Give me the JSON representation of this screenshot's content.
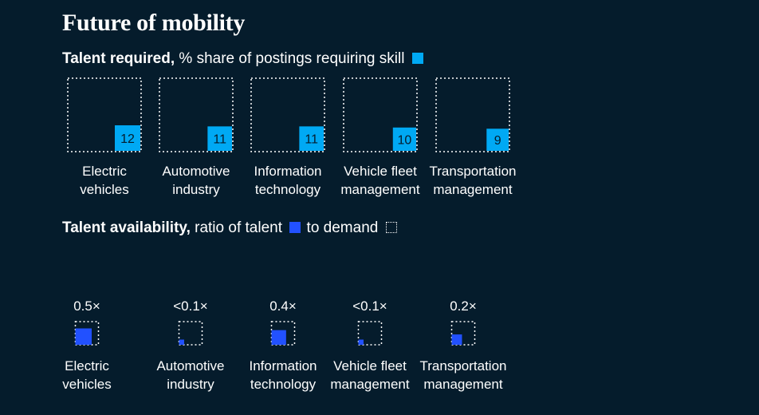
{
  "title": "Future of mobility",
  "talent_required": {
    "label_bold": "Talent required,",
    "label_rest": " % share of postings requiring skill",
    "legend_color": "#00a9f4"
  },
  "talent_availability": {
    "label_bold": "Talent availability,",
    "label_rest": " ratio of talent",
    "label_demand": " to demand",
    "legend_color": "#2251ff"
  },
  "chart_data": [
    {
      "type": "bar",
      "title": "Talent required, % share of postings requiring skill",
      "categories": [
        [
          "Electric",
          "vehicles"
        ],
        [
          "Automotive",
          "industry"
        ],
        [
          "Information",
          "technology"
        ],
        [
          "Vehicle fleet",
          "management"
        ],
        [
          "Transportation",
          "management"
        ]
      ],
      "values": [
        12,
        11,
        11,
        10,
        9
      ],
      "value_labels": [
        "12",
        "11",
        "11",
        "10",
        "9"
      ]
    },
    {
      "type": "bar",
      "title": "Talent availability, ratio of talent to demand",
      "categories": [
        [
          "Electric",
          "vehicles"
        ],
        [
          "Automotive",
          "industry"
        ],
        [
          "Information",
          "technology"
        ],
        [
          "Vehicle fleet",
          "management"
        ],
        [
          "Transportation",
          "management"
        ]
      ],
      "values": [
        0.5,
        0.05,
        0.4,
        0.05,
        0.2
      ],
      "value_labels": [
        "0.5×",
        "<0.1×",
        "0.4×",
        "<0.1×",
        "0.2×"
      ]
    }
  ],
  "colors": {
    "background": "#051c2c",
    "required": "#00a9f4",
    "availability": "#2251ff",
    "text": "#ffffff"
  }
}
